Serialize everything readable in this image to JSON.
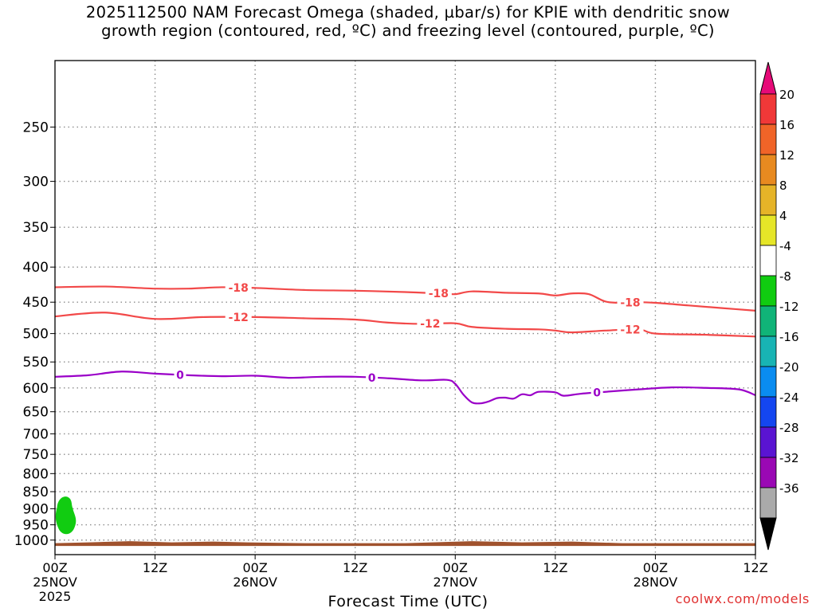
{
  "title": {
    "line1": "2025112500 NAM Forecast Omega (shaded, µbar/s) for KPIE with dendritic snow",
    "line2": "growth region (contoured, red, ºC) and freezing level (contoured, purple, ºC)"
  },
  "credit": "coolwx.com/models",
  "colors": {
    "snow_contour": "#f24848",
    "freezing_contour": "#9a00c8",
    "ground": "#a0522d",
    "omega_patch": "#11cc11",
    "grid": "#8c8c8c"
  },
  "chart_data": {
    "type": "time-height",
    "xlabel": "Forecast Time (UTC)",
    "ylabel": "",
    "x_range_hours": [
      0,
      84
    ],
    "y_axis": "pressure (mb), log scale, inverted",
    "y_range": [
      1050,
      200
    ],
    "y_ticks": [
      250,
      300,
      350,
      400,
      450,
      500,
      550,
      600,
      650,
      700,
      750,
      800,
      850,
      900,
      950,
      1000
    ],
    "x_ticks": [
      {
        "hour": 0,
        "lines": [
          "00Z",
          "25NOV",
          "2025"
        ]
      },
      {
        "hour": 12,
        "lines": [
          "12Z"
        ]
      },
      {
        "hour": 24,
        "lines": [
          "00Z",
          "26NOV"
        ]
      },
      {
        "hour": 36,
        "lines": [
          "12Z"
        ]
      },
      {
        "hour": 48,
        "lines": [
          "00Z",
          "27NOV"
        ]
      },
      {
        "hour": 60,
        "lines": [
          "12Z"
        ]
      },
      {
        "hour": 72,
        "lines": [
          "00Z",
          "28NOV"
        ]
      },
      {
        "hour": 84,
        "lines": [
          "12Z"
        ]
      }
    ],
    "contours": [
      {
        "name": "-18",
        "label": "-18",
        "color": "#f24848",
        "label_hours": [
          22,
          46,
          69
        ],
        "points": [
          [
            0,
            428
          ],
          [
            6,
            427
          ],
          [
            12,
            430
          ],
          [
            16,
            430
          ],
          [
            20,
            428
          ],
          [
            24,
            429
          ],
          [
            30,
            432
          ],
          [
            36,
            433
          ],
          [
            42,
            435
          ],
          [
            46,
            437
          ],
          [
            48,
            438
          ],
          [
            50,
            434
          ],
          [
            54,
            436
          ],
          [
            58,
            437
          ],
          [
            60,
            440
          ],
          [
            62,
            437
          ],
          [
            64,
            438
          ],
          [
            66,
            449
          ],
          [
            68,
            451
          ],
          [
            70,
            450
          ],
          [
            72,
            451
          ],
          [
            76,
            455
          ],
          [
            80,
            459
          ],
          [
            84,
            463
          ]
        ]
      },
      {
        "name": "-12",
        "label": "-12",
        "color": "#f24848",
        "label_hours": [
          22,
          45,
          69
        ],
        "points": [
          [
            0,
            472
          ],
          [
            6,
            466
          ],
          [
            12,
            476
          ],
          [
            18,
            473
          ],
          [
            24,
            473
          ],
          [
            30,
            475
          ],
          [
            36,
            477
          ],
          [
            40,
            482
          ],
          [
            44,
            484
          ],
          [
            48,
            483
          ],
          [
            50,
            489
          ],
          [
            54,
            492
          ],
          [
            58,
            493
          ],
          [
            60,
            495
          ],
          [
            62,
            498
          ],
          [
            66,
            495
          ],
          [
            70,
            493
          ],
          [
            72,
            500
          ],
          [
            78,
            502
          ],
          [
            84,
            505
          ]
        ]
      },
      {
        "name": "0",
        "label": "0",
        "color": "#9a00c8",
        "label_hours": [
          15,
          38,
          65
        ],
        "points": [
          [
            0,
            578
          ],
          [
            4,
            575
          ],
          [
            8,
            568
          ],
          [
            12,
            572
          ],
          [
            16,
            575
          ],
          [
            20,
            577
          ],
          [
            24,
            576
          ],
          [
            28,
            580
          ],
          [
            32,
            578
          ],
          [
            36,
            578
          ],
          [
            40,
            581
          ],
          [
            44,
            585
          ],
          [
            47,
            584
          ],
          [
            48,
            592
          ],
          [
            49,
            614
          ],
          [
            50,
            630
          ],
          [
            51,
            632
          ],
          [
            52,
            628
          ],
          [
            53,
            621
          ],
          [
            54,
            620
          ],
          [
            55,
            622
          ],
          [
            56,
            613
          ],
          [
            57,
            615
          ],
          [
            58,
            608
          ],
          [
            60,
            609
          ],
          [
            61,
            616
          ],
          [
            63,
            612
          ],
          [
            66,
            608
          ],
          [
            70,
            603
          ],
          [
            74,
            599
          ],
          [
            78,
            600
          ],
          [
            82,
            603
          ],
          [
            84,
            615
          ]
        ]
      }
    ],
    "omega_region": {
      "value_range": [
        -8,
        -4
      ],
      "hours": [
        0,
        2.5
      ],
      "pressure": [
        860,
        985
      ]
    },
    "ground_level_mb": [
      1005,
      1020
    ],
    "colorbar": {
      "labels": [
        "20",
        "16",
        "12",
        "8",
        "4",
        "-4",
        "-8",
        "-12",
        "-16",
        "-20",
        "-24",
        "-28",
        "-32",
        "-36"
      ],
      "segment_colors": [
        "#f03838",
        "#f06428",
        "#e88a20",
        "#e6b428",
        "#e6e628",
        "#ffffff",
        "#10cc10",
        "#10b478",
        "#18b4b4",
        "#0a8cf0",
        "#1446f0",
        "#5a14d2",
        "#9a08b4",
        "#aaaaaa"
      ],
      "top_arrow_color": "#e60a78",
      "bottom_arrow_color": "#000000"
    }
  }
}
